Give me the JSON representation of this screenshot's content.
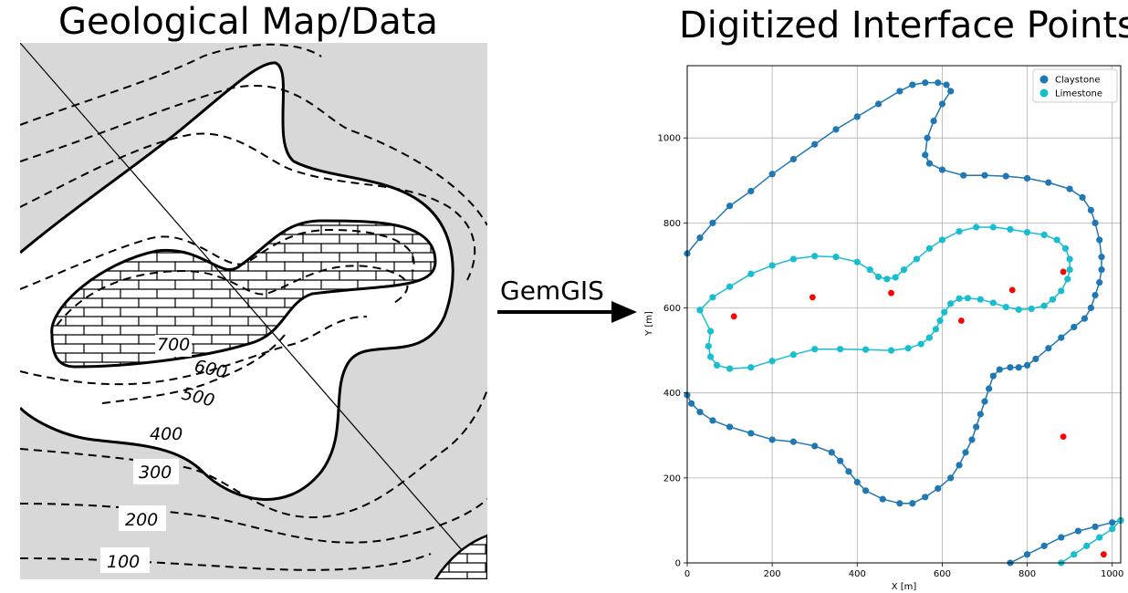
{
  "left_title": "Geological Map/Data",
  "right_title": "Digitized Interface Points",
  "arrow_label": "GemGIS",
  "map_contours": {
    "labels": [
      "700",
      "600",
      "500",
      "400",
      "300",
      "200",
      "100"
    ]
  },
  "chart_data": {
    "type": "scatter",
    "xlabel": "X [m]",
    "ylabel": "Y [m]",
    "xlim": [
      0,
      1020
    ],
    "ylim": [
      0,
      1170
    ],
    "xticks": [
      0,
      200,
      400,
      600,
      800,
      1000
    ],
    "yticks": [
      0,
      200,
      400,
      600,
      800,
      1000
    ],
    "grid": true,
    "legend": "top-right",
    "series": [
      {
        "name": "Claystone",
        "color": "#1f77b4",
        "lines": [
          [
            [
              0,
              728
            ],
            [
              30,
              765
            ],
            [
              60,
              800
            ],
            [
              100,
              840
            ],
            [
              150,
              875
            ],
            [
              200,
              915
            ],
            [
              250,
              950
            ],
            [
              300,
              985
            ],
            [
              350,
              1020
            ],
            [
              400,
              1050
            ],
            [
              450,
              1080
            ],
            [
              500,
              1110
            ],
            [
              530,
              1125
            ],
            [
              560,
              1130
            ],
            [
              590,
              1130
            ],
            [
              610,
              1125
            ],
            [
              620,
              1110
            ],
            [
              600,
              1080
            ],
            [
              580,
              1040
            ],
            [
              565,
              1000
            ],
            [
              560,
              960
            ],
            [
              570,
              940
            ],
            [
              600,
              925
            ],
            [
              650,
              912
            ],
            [
              700,
              912
            ],
            [
              750,
              910
            ],
            [
              800,
              905
            ],
            [
              850,
              895
            ],
            [
              900,
              880
            ],
            [
              930,
              860
            ],
            [
              950,
              830
            ],
            [
              960,
              800
            ],
            [
              970,
              760
            ],
            [
              975,
              720
            ],
            [
              975,
              690
            ],
            [
              970,
              660
            ],
            [
              960,
              630
            ],
            [
              950,
              600
            ],
            [
              935,
              575
            ],
            [
              910,
              555
            ],
            [
              880,
              530
            ],
            [
              850,
              505
            ],
            [
              820,
              480
            ],
            [
              800,
              465
            ],
            [
              780,
              460
            ],
            [
              760,
              460
            ],
            [
              735,
              455
            ],
            [
              720,
              440
            ],
            [
              710,
              410
            ],
            [
              700,
              380
            ],
            [
              690,
              350
            ],
            [
              680,
              320
            ],
            [
              670,
              290
            ],
            [
              655,
              260
            ],
            [
              640,
              230
            ],
            [
              620,
              200
            ],
            [
              590,
              175
            ],
            [
              560,
              155
            ],
            [
              530,
              140
            ],
            [
              500,
              140
            ],
            [
              460,
              150
            ],
            [
              420,
              170
            ],
            [
              400,
              190
            ],
            [
              380,
              215
            ],
            [
              360,
              240
            ],
            [
              340,
              260
            ],
            [
              300,
              275
            ],
            [
              250,
              285
            ],
            [
              200,
              290
            ],
            [
              150,
              305
            ],
            [
              100,
              320
            ],
            [
              60,
              335
            ],
            [
              30,
              355
            ],
            [
              10,
              375
            ],
            [
              0,
              395
            ]
          ],
          [
            [
              760,
              0
            ],
            [
              800,
              20
            ],
            [
              840,
              40
            ],
            [
              880,
              60
            ],
            [
              920,
              75
            ],
            [
              960,
              85
            ],
            [
              1000,
              95
            ],
            [
              1020,
              100
            ]
          ]
        ]
      },
      {
        "name": "Limestone",
        "color": "#17becf",
        "lines": [
          [
            [
              30,
              595
            ],
            [
              60,
              625
            ],
            [
              100,
              650
            ],
            [
              150,
              680
            ],
            [
              200,
              700
            ],
            [
              250,
              715
            ],
            [
              300,
              722
            ],
            [
              350,
              720
            ],
            [
              400,
              708
            ],
            [
              430,
              690
            ],
            [
              450,
              673
            ],
            [
              470,
              668
            ],
            [
              490,
              672
            ],
            [
              510,
              690
            ],
            [
              540,
              715
            ],
            [
              570,
              740
            ],
            [
              600,
              760
            ],
            [
              640,
              780
            ],
            [
              680,
              790
            ],
            [
              720,
              790
            ],
            [
              760,
              785
            ],
            [
              800,
              778
            ],
            [
              840,
              772
            ],
            [
              870,
              760
            ],
            [
              890,
              740
            ],
            [
              900,
              715
            ],
            [
              900,
              690
            ],
            [
              895,
              668
            ],
            [
              880,
              640
            ],
            [
              860,
              620
            ],
            [
              840,
              605
            ],
            [
              810,
              598
            ],
            [
              780,
              596
            ],
            [
              750,
              602
            ],
            [
              720,
              612
            ],
            [
              690,
              620
            ],
            [
              660,
              623
            ],
            [
              640,
              622
            ],
            [
              620,
              610
            ],
            [
              605,
              590
            ],
            [
              595,
              570
            ],
            [
              585,
              550
            ],
            [
              570,
              530
            ],
            [
              550,
              515
            ],
            [
              520,
              505
            ],
            [
              480,
              500
            ],
            [
              420,
              502
            ],
            [
              360,
              503
            ],
            [
              300,
              503
            ],
            [
              250,
              490
            ],
            [
              200,
              475
            ],
            [
              150,
              460
            ],
            [
              100,
              457
            ],
            [
              70,
              465
            ],
            [
              55,
              485
            ],
            [
              50,
              510
            ],
            [
              55,
              545
            ],
            [
              30,
              595
            ]
          ],
          [
            [
              880,
              0
            ],
            [
              910,
              20
            ],
            [
              940,
              40
            ],
            [
              970,
              60
            ],
            [
              1000,
              80
            ],
            [
              1020,
              100
            ]
          ]
        ]
      }
    ],
    "orientation_points": [
      [
        110,
        580
      ],
      [
        295,
        625
      ],
      [
        480,
        635
      ],
      [
        645,
        570
      ],
      [
        765,
        642
      ],
      [
        885,
        685
      ],
      [
        885,
        297
      ],
      [
        980,
        20
      ]
    ],
    "orientation_color": "#ff0000"
  }
}
